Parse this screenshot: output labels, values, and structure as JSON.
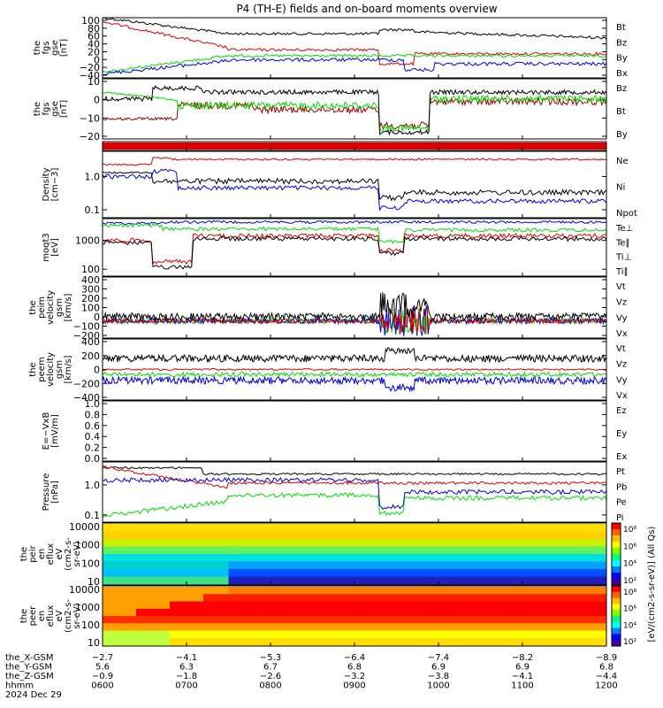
{
  "title": "P4 (TH-E) fields and on-board moments overview",
  "colors": {
    "black": "#000000",
    "red": "#dd0000",
    "green": "#00dd00",
    "blue": "#0000dd",
    "darkred": "#990000"
  },
  "chart_data": [
    {
      "type": "line",
      "ylabel": [
        "the",
        "fgs",
        "gse",
        "[nT]"
      ],
      "yticks": [
        "100",
        "80",
        "60",
        "40",
        "20",
        "0",
        "−20",
        "−40"
      ],
      "ylim": [
        -50,
        100
      ],
      "legend": [
        {
          "name": "Bt",
          "color": "#000000"
        },
        {
          "name": "Bz",
          "color": "#dd0000"
        },
        {
          "name": "By",
          "color": "#00dd00"
        },
        {
          "name": "Bx",
          "color": "#0000dd"
        }
      ]
    },
    {
      "type": "line",
      "ylabel": [
        "the",
        "fgs",
        "gse",
        "[nT]"
      ],
      "yticks": [
        "10",
        "0",
        "−10",
        "−20"
      ],
      "ylim": [
        -30,
        15
      ],
      "legend": [
        {
          "name": "Bz",
          "color": "#990000"
        },
        {
          "name": "Bt",
          "color": "#000000"
        },
        {
          "name": "By",
          "color": "#00dd00"
        }
      ]
    },
    {
      "type": "bar",
      "ylabel": [],
      "yticks": [],
      "legend": []
    },
    {
      "type": "line",
      "ylabel": [
        "Density",
        "[cm−3]"
      ],
      "yticks": [
        "1.0",
        "0.1"
      ],
      "ylog": true,
      "legend": [
        {
          "name": "Ne",
          "color": "#dd0000"
        },
        {
          "name": "Ni",
          "color": "#000000"
        },
        {
          "name": "Npot",
          "color": "#0000dd"
        }
      ]
    },
    {
      "type": "line",
      "ylabel": [
        "moqt3",
        "[eV]"
      ],
      "yticks": [
        "1000",
        "100"
      ],
      "ylog": true,
      "legend": [
        {
          "name": "Te⊥",
          "color": "#dd0000"
        },
        {
          "name": "Te∥",
          "color": "#000000"
        },
        {
          "name": "Ti⊥",
          "color": "#0000dd"
        },
        {
          "name": "Ti∥",
          "color": "#00dd00"
        }
      ]
    },
    {
      "type": "line",
      "ylabel": [
        "the",
        "peim",
        "velocity",
        "gsm",
        "[km/s]"
      ],
      "yticks": [
        "400",
        "300",
        "200",
        "100",
        "0",
        "−100",
        "−200"
      ],
      "ylim": [
        -200,
        400
      ],
      "legend": [
        {
          "name": "Vt",
          "color": "#000000"
        },
        {
          "name": "Vz",
          "color": "#dd0000"
        },
        {
          "name": "Vy",
          "color": "#00dd00"
        },
        {
          "name": "Vx",
          "color": "#0000dd"
        }
      ]
    },
    {
      "type": "line",
      "ylabel": [
        "the",
        "peem",
        "velocity",
        "gsm",
        "[km/s]"
      ],
      "yticks": [
        "400",
        "200",
        "0",
        "−200",
        "−400"
      ],
      "ylim": [
        -400,
        400
      ],
      "legend": [
        {
          "name": "Vt",
          "color": "#000000"
        },
        {
          "name": "Vz",
          "color": "#dd0000"
        },
        {
          "name": "Vy",
          "color": "#00dd00"
        },
        {
          "name": "Vx",
          "color": "#0000dd"
        }
      ]
    },
    {
      "type": "line",
      "ylabel": [
        "E=−VxB",
        "[mV/m]"
      ],
      "yticks": [
        "1.0",
        "0.8",
        "0.6",
        "0.4",
        "0.2",
        "0.0"
      ],
      "ylim": [
        0,
        1
      ],
      "legend": [
        {
          "name": "Ez",
          "color": "#dd0000"
        },
        {
          "name": "Ey",
          "color": "#00dd00"
        },
        {
          "name": "Ex",
          "color": "#0000dd"
        }
      ]
    },
    {
      "type": "line",
      "ylabel": [
        "Pressure",
        "[nPa]"
      ],
      "yticks": [
        "1.0",
        "0.1"
      ],
      "ylog": true,
      "legend": [
        {
          "name": "Pt",
          "color": "#000000"
        },
        {
          "name": "Pb",
          "color": "#dd0000"
        },
        {
          "name": "Pe",
          "color": "#00dd00"
        },
        {
          "name": "Pi",
          "color": "#0000dd"
        }
      ]
    },
    {
      "type": "heatmap",
      "ylabel": [
        "the",
        "peir",
        "en",
        "eflux",
        "eV",
        "(cm2-s-",
        "sr-eV)"
      ],
      "yticks": [
        "10000",
        "1000",
        "100",
        "10"
      ],
      "ylog": true,
      "legend": []
    },
    {
      "type": "heatmap",
      "ylabel": [
        "the",
        "peer",
        "en",
        "eflux",
        "eV",
        "(cm2-s-",
        "sr-eV)"
      ],
      "yticks": [
        "10000",
        "1000",
        "100",
        "10"
      ],
      "ylog": true,
      "legend": []
    }
  ],
  "colorbar": {
    "label": "[eV/(cm2-s-sr-eV)] (All Qs)",
    "ticks_upper": [
      "10⁸",
      "10⁶",
      "10⁴",
      "10²"
    ],
    "ticks_lower": [
      "10⁸",
      "10⁶",
      "10⁴",
      "10²"
    ]
  },
  "xaxis": {
    "row_labels": [
      "the_X-GSM",
      "the_Y-GSM",
      "the_Z-GSM",
      "hhmm",
      "2024 Dec 29"
    ],
    "columns": [
      [
        "−2.7",
        "5.6",
        "−0.9",
        "0600"
      ],
      [
        "−4.1",
        "6.3",
        "−1.8",
        "0700"
      ],
      [
        "−5.3",
        "6.7",
        "−2.6",
        "0800"
      ],
      [
        "−6.4",
        "6.8",
        "−3.2",
        "0900"
      ],
      [
        "−7.4",
        "6.9",
        "−3.8",
        "1000"
      ],
      [
        "−8.2",
        "6.9",
        "−4.1",
        "1100"
      ],
      [
        "−8.9",
        "6.8",
        "−4.4",
        "1200"
      ]
    ]
  }
}
